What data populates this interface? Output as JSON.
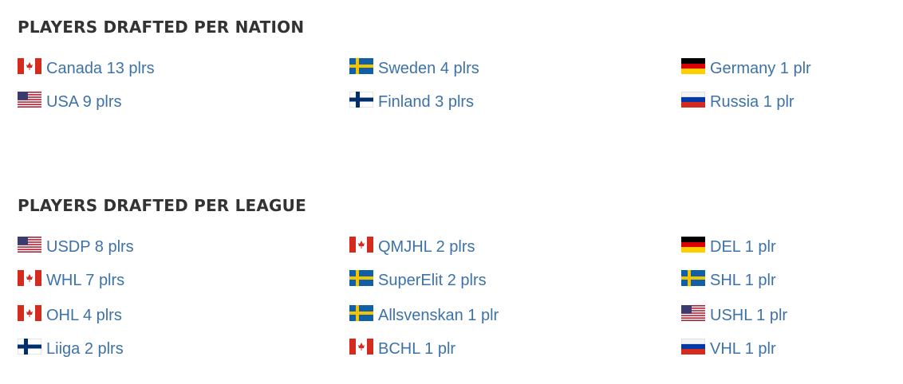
{
  "nation": {
    "title": "PLAYERS DRAFTED PER NATION",
    "columns": [
      [
        "Canada 13 plrs",
        "USA 9 plrs"
      ],
      [
        "Sweden 4 plrs",
        "Finland 3 plrs"
      ],
      [
        "Germany 1 plr",
        "Russia 1 plr"
      ]
    ]
  },
  "league": {
    "title": "PLAYERS DRAFTED PER LEAGUE",
    "columns": [
      [
        "USDP 8 plrs",
        "WHL 7 plrs",
        "OHL 4 plrs",
        "Liiga 2 plrs"
      ],
      [
        "QMJHL 2 plrs",
        "SuperElit 2 plrs",
        "Allsvenskan 1 plr",
        "BCHL 1 plr"
      ],
      [
        "DEL 1 plr",
        "SHL 1 plr",
        "USHL 1 plr",
        "VHL 1 plr"
      ]
    ]
  }
}
